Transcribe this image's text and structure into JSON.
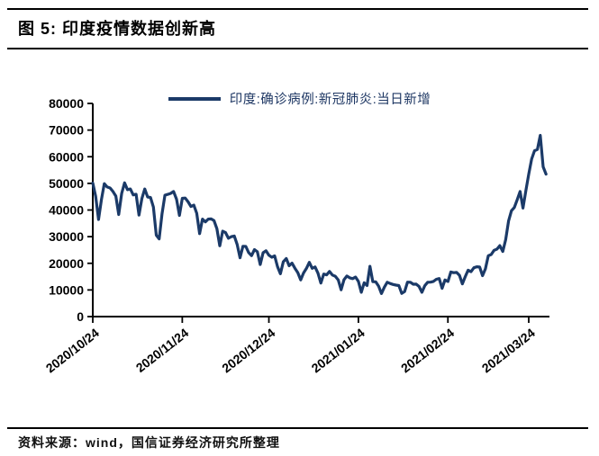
{
  "header": {
    "title": "图 5: 印度疫情数据创新高"
  },
  "footer": {
    "source": "资料来源：wind，国信证券经济研究所整理"
  },
  "chart_data": {
    "type": "line",
    "title": "图 5: 印度疫情数据创新高",
    "legend": "印度:确诊病例:新冠肺炎:当日新增",
    "xlabel": "",
    "ylabel": "",
    "grid": false,
    "legend_position": "top-center",
    "ylim": [
      0,
      80000
    ],
    "ytick_step": 10000,
    "ytick_labels": [
      "0",
      "10000",
      "20000",
      "30000",
      "40000",
      "50000",
      "60000",
      "70000",
      "80000"
    ],
    "xtick_labels": [
      "2020/10/24",
      "2020/11/24",
      "2020/12/24",
      "2021/01/24",
      "2021/02/24",
      "2021/03/24"
    ],
    "xtick_day_offsets": [
      0,
      31,
      61,
      92,
      123,
      151
    ],
    "colors": {
      "line": "#1B3A68",
      "axis": "#000000",
      "tick_label": "#000000",
      "legend_text": "#1F3864"
    },
    "series": [
      {
        "name": "印度:确诊病例:新冠肺炎:当日新增",
        "start_date": "2020/10/24",
        "end_date": "2021/03/30",
        "frequency": "daily",
        "values": [
          50129,
          45148,
          36470,
          43893,
          49881,
          48648,
          48268,
          46963,
          45231,
          38310,
          46253,
          50210,
          47638,
          47905,
          45674,
          45903,
          38073,
          44281,
          47905,
          44879,
          44684,
          41100,
          30548,
          29163,
          38617,
          45576,
          45882,
          46232,
          46964,
          44059,
          37975,
          44376,
          44489,
          43082,
          41322,
          41810,
          38772,
          31118,
          36604,
          35551,
          36595,
          36652,
          36011,
          32981,
          26567,
          32080,
          31521,
          29398,
          30006,
          30254,
          27071,
          22065,
          26382,
          26320,
          24010,
          22890,
          25152,
          24337,
          19556,
          23950,
          24712,
          23067,
          22273,
          22772,
          18732,
          16072,
          20549,
          21822,
          19078,
          20035,
          18177,
          16504,
          13758,
          16375,
          18088,
          20346,
          18139,
          18645,
          16311,
          12584,
          15968,
          15662,
          16946,
          15590,
          15158,
          13788,
          10064,
          13823,
          15223,
          14545,
          14256,
          14849,
          13203,
          9102,
          12689,
          11666,
          18855,
          13083,
          13052,
          11427,
          8635,
          11039,
          12899,
          12408,
          12059,
          11831,
          11649,
          8700,
          9379,
          12923,
          12899,
          12143,
          12194,
          11300,
          9121,
          11610,
          12881,
          12923,
          13193,
          13993,
          14264,
          10584,
          13742,
          13166,
          16738,
          16488,
          16577,
          15510,
          12286,
          14989,
          17407,
          16838,
          18327,
          18711,
          18599,
          15353,
          17921,
          22854,
          23285,
          24882,
          25320,
          26624,
          24437,
          28903,
          35871,
          39726,
          40953,
          43846,
          46951,
          40715,
          47262,
          53476,
          59118,
          62258,
          62714,
          68020,
          56211,
          53480
        ]
      }
    ]
  }
}
